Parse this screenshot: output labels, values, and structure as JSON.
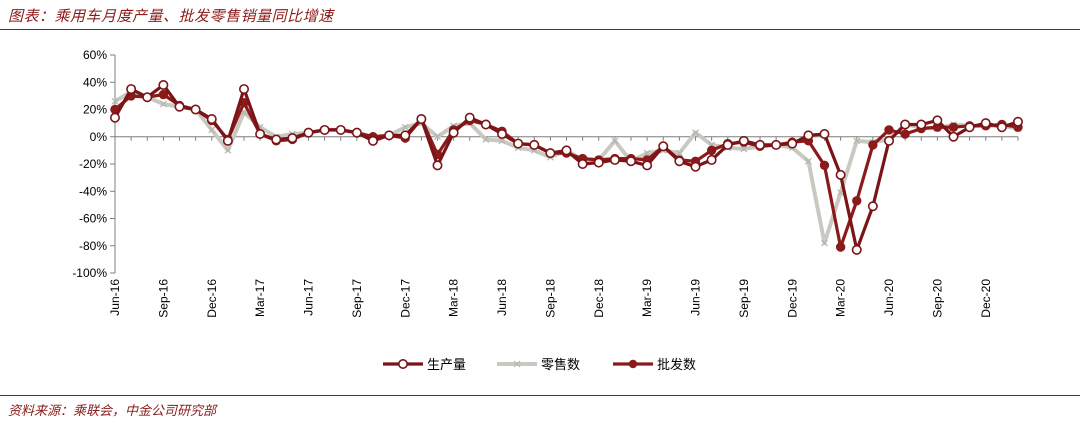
{
  "title": "图表：乘用车月度产量、批发零售销量同比增速",
  "source": "资料来源：乘联会，中金公司研究部",
  "chart_data": {
    "type": "line",
    "ylim": [
      -100,
      60
    ],
    "y_ticks": [
      "60%",
      "40%",
      "20%",
      "0%",
      "-20%",
      "-40%",
      "-60%",
      "-80%",
      "-100%"
    ],
    "y_tick_values": [
      60,
      40,
      20,
      0,
      -20,
      -40,
      -60,
      -80,
      -100
    ],
    "x_tick_labels": [
      "Jun-16",
      "Sep-16",
      "Dec-16",
      "Mar-17",
      "Jun-17",
      "Sep-17",
      "Dec-17",
      "Mar-18",
      "Jun-18",
      "Sep-18",
      "Dec-18",
      "Mar-19",
      "Jun-19",
      "Sep-19",
      "Dec-19",
      "Mar-20",
      "Jun-20",
      "Sep-20",
      "Dec-20"
    ],
    "x_tick_index": [
      0,
      3,
      6,
      9,
      12,
      15,
      18,
      21,
      24,
      27,
      30,
      33,
      36,
      39,
      42,
      45,
      48,
      51,
      54
    ],
    "legend_position": "bottom",
    "grid": false,
    "series": [
      {
        "name": "生产量",
        "color": "#7a1419",
        "marker": "open-circle",
        "values": [
          14,
          35,
          29,
          38,
          22,
          20,
          13,
          -3,
          35,
          2,
          -2,
          -1,
          3,
          5,
          5,
          3,
          -3,
          1,
          1,
          13,
          -21,
          3,
          14,
          9,
          2,
          -5,
          -6,
          -12,
          -10,
          -20,
          -19,
          -17,
          -18,
          -21,
          -7,
          -18,
          -22,
          -17,
          -6,
          -3,
          -6,
          -6,
          -5,
          1,
          2,
          -28,
          -83,
          -51,
          -3,
          9,
          9,
          12,
          0,
          7,
          10,
          7,
          11
        ]
      },
      {
        "name": "零售数",
        "color": "#c9c9c2",
        "marker": "x",
        "values": [
          26,
          33,
          29,
          24,
          22,
          20,
          5,
          -10,
          18,
          7,
          0,
          2,
          3,
          5,
          5,
          3,
          0,
          1,
          7,
          10,
          0,
          8,
          10,
          -2,
          -3,
          -8,
          -10,
          -15,
          -10,
          -17,
          -17,
          -3,
          -18,
          -12,
          -10,
          -12,
          3,
          -6,
          -8,
          -9,
          -7,
          -6,
          -8,
          -18,
          -78,
          -41,
          -3,
          -4,
          -2,
          9,
          7,
          6,
          9,
          8,
          8,
          8,
          6
        ]
      },
      {
        "name": "批发数",
        "color": "#8b1a1a",
        "marker": "filled-circle",
        "values": [
          20,
          30,
          29,
          31,
          23,
          20,
          12,
          -2,
          25,
          2,
          -3,
          -2,
          3,
          5,
          5,
          3,
          0,
          1,
          -1,
          13,
          -13,
          5,
          12,
          9,
          4,
          -5,
          -6,
          -12,
          -12,
          -16,
          -17,
          -16,
          -16,
          -17,
          -7,
          -17,
          -18,
          -10,
          -5,
          -4,
          -7,
          -6,
          -4,
          -3,
          -21,
          -81,
          -47,
          -6,
          5,
          2,
          6,
          7,
          7,
          8,
          8,
          9,
          7
        ]
      }
    ]
  }
}
